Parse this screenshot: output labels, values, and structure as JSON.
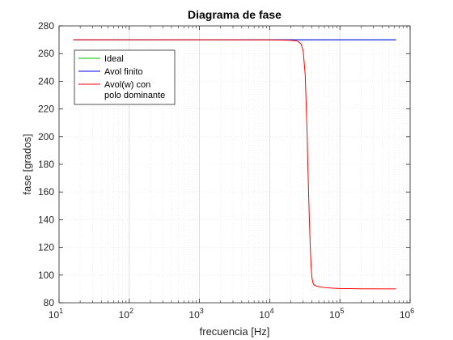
{
  "chart_data": {
    "type": "line",
    "title": "Diagrama de fase",
    "xlabel": "frecuencia [Hz]",
    "ylabel": "fase [grados]",
    "xscale": "log",
    "xlim": [
      10,
      1000000
    ],
    "ylim": [
      80,
      280
    ],
    "yticks": [
      80,
      100,
      120,
      140,
      160,
      180,
      200,
      220,
      240,
      260,
      280
    ],
    "xticks": [
      {
        "base": "10",
        "exp": "1"
      },
      {
        "base": "10",
        "exp": "2"
      },
      {
        "base": "10",
        "exp": "3"
      },
      {
        "base": "10",
        "exp": "4"
      },
      {
        "base": "10",
        "exp": "5"
      },
      {
        "base": "10",
        "exp": "6"
      }
    ],
    "grid": true,
    "legend_position": "top-left",
    "series": [
      {
        "name": "Ideal",
        "color": "#00c000",
        "x": [
          16,
          630000
        ],
        "y": [
          270,
          270
        ]
      },
      {
        "name": "Avol finito",
        "color": "#0000ff",
        "x": [
          16,
          630000
        ],
        "y": [
          270,
          270
        ]
      },
      {
        "name": "Avol(w) con polo dominante",
        "legend_lines": [
          "Avol(w) con",
          "polo dominante"
        ],
        "color": "#ff0000",
        "x": [
          16,
          1000,
          10000,
          20000,
          25000,
          28000,
          30000,
          32000,
          34000,
          35000,
          36000,
          37000,
          38000,
          39000,
          40000,
          41000,
          42000,
          44000,
          47000,
          52000,
          60000,
          80000,
          100000,
          200000,
          630000
        ],
        "y": [
          270,
          270,
          269.9,
          269.6,
          269,
          267,
          262,
          245,
          205,
          178,
          155,
          135,
          118,
          105,
          98,
          95,
          93.5,
          92.5,
          92,
          91.5,
          91,
          90.5,
          90.3,
          90.1,
          90
        ]
      }
    ]
  }
}
